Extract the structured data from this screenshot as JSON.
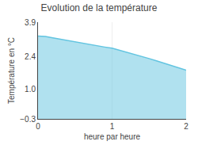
{
  "chart_data": {
    "type": "area",
    "title": "Evolution de la température",
    "x_label": "heure par heure",
    "y_label": "Température en °C",
    "x": [
      0,
      0.1,
      0.2,
      0.3,
      0.4,
      0.5,
      0.6,
      0.7,
      0.8,
      0.9,
      1.0,
      1.1,
      1.2,
      1.3,
      1.4,
      1.5,
      1.6,
      1.7,
      1.8,
      1.9,
      2.0
    ],
    "values": [
      3.3,
      3.28,
      3.22,
      3.16,
      3.1,
      3.04,
      2.98,
      2.92,
      2.87,
      2.82,
      2.77,
      2.68,
      2.6,
      2.52,
      2.42,
      2.32,
      2.22,
      2.12,
      2.02,
      1.92,
      1.82
    ],
    "color": "#62c4e0",
    "xlim": [
      0,
      2
    ],
    "ylim": [
      -0.3,
      3.9
    ],
    "xticks": [
      0,
      1,
      2
    ],
    "yticks": [
      {
        "value": -0.3,
        "label": "−0.3"
      },
      {
        "value": 1.0,
        "label": "1.0"
      },
      {
        "value": 2.4,
        "label": "2.4"
      },
      {
        "value": 3.9,
        "label": "3.9"
      }
    ],
    "grid": "x"
  }
}
